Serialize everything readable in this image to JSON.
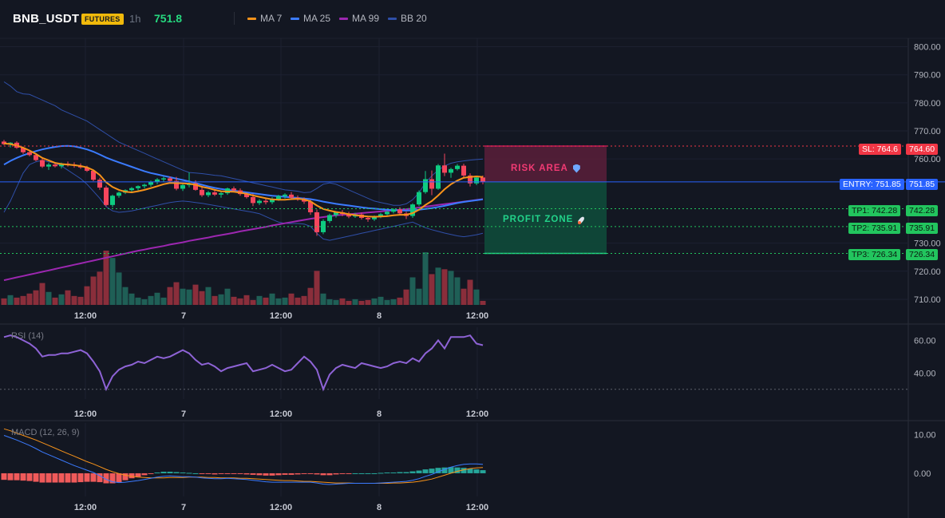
{
  "header": {
    "symbol": "BNB_USDT",
    "badge": "FUTURES",
    "interval": "1h",
    "price": "751.8",
    "legend": [
      {
        "label": "MA 7",
        "color": "#f7931a"
      },
      {
        "label": "MA 25",
        "color": "#3b7bff"
      },
      {
        "label": "MA 99",
        "color": "#9c27b0"
      },
      {
        "label": "BB 20",
        "color": "#2f4fa8"
      }
    ]
  },
  "colors": {
    "up": "#26a69a",
    "up_bright": "#0ecb81",
    "down": "#f6465d",
    "vol_up": "#1f5f56",
    "vol_down": "#8a2e3b",
    "risk": "#f23a74",
    "profit": "#22d38a",
    "rsi": "#8e63d6",
    "macd": "#3b7bff",
    "signal": "#f7931a",
    "hist_down": "#f05a5a",
    "hist_up": "#26a69a"
  },
  "panes": {
    "rsi_label": "RSI (14)",
    "macd_label": "MACD (12, 26, 9)"
  },
  "zones": {
    "risk_label": "RISK AREA",
    "profit_label": "PROFIT ZONE"
  },
  "levels": {
    "sl": {
      "tag": "SL: 764.6",
      "value": 764.6,
      "axis": "764.60"
    },
    "entry": {
      "tag": "ENTRY: 751.85",
      "value": 751.85,
      "axis": "751.85"
    },
    "tp1": {
      "tag": "TP1: 742.28",
      "value": 742.28,
      "axis": "742.28"
    },
    "tp2": {
      "tag": "TP2: 735.91",
      "value": 735.91,
      "axis": "735.91"
    },
    "tp3": {
      "tag": "TP3: 726.34",
      "value": 726.34,
      "axis": "726.34"
    }
  },
  "chart_data": {
    "type": "candlestick",
    "x_labels": [
      "12:00",
      "7",
      "12:00",
      "8",
      "12:00"
    ],
    "price_axis": {
      "ticks": [
        "800.00",
        "790.00",
        "780.00",
        "770.00",
        "760.00",
        "730.00",
        "720.00",
        "710.00"
      ],
      "range": [
        708,
        803
      ]
    },
    "rsi_axis": {
      "ticks": [
        "60.00",
        "40.00"
      ],
      "range": [
        24,
        68
      ]
    },
    "macd_axis": {
      "ticks": [
        "10.00",
        "0.00"
      ],
      "range": [
        -6,
        13
      ]
    },
    "candles": [
      [
        766.2,
        766.8,
        764.9,
        765.3
      ],
      [
        765.3,
        766.0,
        764.1,
        765.8
      ],
      [
        765.8,
        766.3,
        763.6,
        764.0
      ],
      [
        764.0,
        764.4,
        761.8,
        762.4
      ],
      [
        762.4,
        763.1,
        760.9,
        761.4
      ],
      [
        761.4,
        762.0,
        759.2,
        759.6
      ],
      [
        759.6,
        760.4,
        756.8,
        757.3
      ],
      [
        757.3,
        758.6,
        756.1,
        758.0
      ],
      [
        758.0,
        758.9,
        757.0,
        757.4
      ],
      [
        757.4,
        758.7,
        756.6,
        758.3
      ],
      [
        758.3,
        759.1,
        757.3,
        758.0
      ],
      [
        758.0,
        758.8,
        756.9,
        757.6
      ],
      [
        757.6,
        758.4,
        756.5,
        757.0
      ],
      [
        757.0,
        757.6,
        755.4,
        755.8
      ],
      [
        755.8,
        756.2,
        752.1,
        752.6
      ],
      [
        752.6,
        753.3,
        749.0,
        749.8
      ],
      [
        749.8,
        750.5,
        743.1,
        743.6
      ],
      [
        743.6,
        747.3,
        742.8,
        746.9
      ],
      [
        746.9,
        748.4,
        746.2,
        748.0
      ],
      [
        748.0,
        749.2,
        747.5,
        748.9
      ],
      [
        748.9,
        750.0,
        748.2,
        749.6
      ],
      [
        749.6,
        750.6,
        748.8,
        750.3
      ],
      [
        750.3,
        751.2,
        749.5,
        750.8
      ],
      [
        750.8,
        752.3,
        750.1,
        751.8
      ],
      [
        751.8,
        753.2,
        751.0,
        752.7
      ],
      [
        752.7,
        753.7,
        751.9,
        753.1
      ],
      [
        753.1,
        753.8,
        751.7,
        752.2
      ],
      [
        752.2,
        753.6,
        748.8,
        749.4
      ],
      [
        749.4,
        751.2,
        748.6,
        750.7
      ],
      [
        750.7,
        755.2,
        749.9,
        751.3
      ],
      [
        751.3,
        752.4,
        748.7,
        749.0
      ],
      [
        749.0,
        749.8,
        746.5,
        747.1
      ],
      [
        747.1,
        748.6,
        746.4,
        748.1
      ],
      [
        748.1,
        748.9,
        746.8,
        747.3
      ],
      [
        747.3,
        748.4,
        746.2,
        747.8
      ],
      [
        747.8,
        749.8,
        747.2,
        749.5
      ],
      [
        749.5,
        750.2,
        748.3,
        748.8
      ],
      [
        748.8,
        749.5,
        746.9,
        747.5
      ],
      [
        747.5,
        748.0,
        745.9,
        746.4
      ],
      [
        746.4,
        747.6,
        743.2,
        744.3
      ],
      [
        744.3,
        745.7,
        743.6,
        745.1
      ],
      [
        745.1,
        745.9,
        743.8,
        744.6
      ],
      [
        744.6,
        746.4,
        743.9,
        745.6
      ],
      [
        745.6,
        747.2,
        745.1,
        746.8
      ],
      [
        746.8,
        747.8,
        745.9,
        747.3
      ],
      [
        747.3,
        748.2,
        745.6,
        746.2
      ],
      [
        746.2,
        747.0,
        745.1,
        745.7
      ],
      [
        745.7,
        746.3,
        744.0,
        744.8
      ],
      [
        744.8,
        745.5,
        740.1,
        741.0
      ],
      [
        741.0,
        742.0,
        732.6,
        733.9
      ],
      [
        733.9,
        738.5,
        733.2,
        737.9
      ],
      [
        737.9,
        740.5,
        737.2,
        740.0
      ],
      [
        740.0,
        741.3,
        739.1,
        741.0
      ],
      [
        741.0,
        741.8,
        739.6,
        740.4
      ],
      [
        740.4,
        741.2,
        738.9,
        739.5
      ],
      [
        739.5,
        740.8,
        739.0,
        740.2
      ],
      [
        740.2,
        740.9,
        738.4,
        739.0
      ],
      [
        739.0,
        739.7,
        737.6,
        738.5
      ],
      [
        738.5,
        739.9,
        737.9,
        739.5
      ],
      [
        739.5,
        740.8,
        738.9,
        740.3
      ],
      [
        740.3,
        741.5,
        739.8,
        741.2
      ],
      [
        741.2,
        742.4,
        740.6,
        742.0
      ],
      [
        742.0,
        742.8,
        740.0,
        740.6
      ],
      [
        740.6,
        741.2,
        738.6,
        739.7
      ],
      [
        739.7,
        744.2,
        739.0,
        743.8
      ],
      [
        743.8,
        748.8,
        743.2,
        748.2
      ],
      [
        748.2,
        755.7,
        747.6,
        752.8
      ],
      [
        752.8,
        755.9,
        747.1,
        749.4
      ],
      [
        749.4,
        758.2,
        749.0,
        757.7
      ],
      [
        757.7,
        761.9,
        753.9,
        755.1
      ],
      [
        755.1,
        756.9,
        753.3,
        756.4
      ],
      [
        756.4,
        758.2,
        755.9,
        757.6
      ],
      [
        757.6,
        758.3,
        753.4,
        754.1
      ],
      [
        754.1,
        754.9,
        750.2,
        751.3
      ],
      [
        751.3,
        753.9,
        750.7,
        753.4
      ],
      [
        753.4,
        754.1,
        751.0,
        751.8
      ]
    ],
    "volumes": [
      8,
      12,
      9,
      11,
      14,
      18,
      27,
      16,
      9,
      13,
      18,
      11,
      10,
      23,
      35,
      41,
      67,
      58,
      40,
      22,
      14,
      9,
      7,
      11,
      15,
      9,
      22,
      28,
      20,
      19,
      25,
      17,
      22,
      11,
      13,
      20,
      10,
      8,
      12,
      6,
      11,
      9,
      14,
      8,
      9,
      14,
      9,
      11,
      21,
      42,
      14,
      7,
      6,
      8,
      5,
      7,
      5,
      6,
      8,
      10,
      6,
      7,
      9,
      19,
      34,
      20,
      65,
      38,
      46,
      44,
      42,
      34,
      20,
      31,
      19,
      5
    ],
    "rsi": [
      62,
      63,
      62,
      60,
      58,
      55,
      50,
      51,
      51,
      52,
      52,
      53,
      54,
      52,
      47,
      41,
      30,
      38,
      42,
      44,
      45,
      47,
      46,
      48,
      50,
      49,
      50,
      52,
      54,
      52,
      48,
      45,
      46,
      44,
      41,
      43,
      44,
      45,
      46,
      41,
      42,
      43,
      45,
      43,
      41,
      42,
      46,
      50,
      47,
      42,
      30,
      39,
      43,
      45,
      44,
      43,
      46,
      45,
      44,
      43,
      44,
      46,
      47,
      46,
      49,
      47,
      52,
      55,
      60,
      55,
      62,
      62,
      62,
      63,
      58,
      57
    ],
    "macd": [
      9.8,
      9.2,
      8.6,
      7.9,
      7.2,
      6.4,
      5.5,
      4.8,
      4.1,
      3.4,
      2.7,
      2.0,
      1.4,
      0.8,
      0.2,
      -0.6,
      -1.6,
      -2.2,
      -2.4,
      -2.3,
      -2.1,
      -1.9,
      -1.6,
      -1.3,
      -1.0,
      -0.8,
      -0.7,
      -0.8,
      -0.9,
      -0.9,
      -1.0,
      -1.2,
      -1.3,
      -1.4,
      -1.4,
      -1.3,
      -1.4,
      -1.5,
      -1.6,
      -1.8,
      -2.0,
      -2.2,
      -2.3,
      -2.3,
      -2.3,
      -2.3,
      -2.3,
      -2.3,
      -2.3,
      -2.5,
      -2.8,
      -2.9,
      -2.8,
      -2.7,
      -2.6,
      -2.6,
      -2.6,
      -2.6,
      -2.6,
      -2.5,
      -2.4,
      -2.3,
      -2.2,
      -2.1,
      -1.8,
      -1.4,
      -0.8,
      -0.3,
      0.4,
      1.0,
      1.6,
      2.0,
      2.3,
      2.4,
      2.4,
      2.3
    ],
    "signal": [
      11.5,
      11.0,
      10.4,
      9.8,
      9.2,
      8.6,
      7.9,
      7.2,
      6.5,
      5.8,
      5.1,
      4.4,
      3.7,
      3.0,
      2.4,
      1.7,
      1.0,
      0.4,
      -0.1,
      -0.5,
      -0.8,
      -1.0,
      -1.1,
      -1.2,
      -1.2,
      -1.2,
      -1.1,
      -1.1,
      -1.1,
      -1.0,
      -1.0,
      -1.0,
      -1.1,
      -1.1,
      -1.2,
      -1.2,
      -1.2,
      -1.3,
      -1.3,
      -1.4,
      -1.5,
      -1.6,
      -1.7,
      -1.8,
      -1.9,
      -1.9,
      -2.0,
      -2.1,
      -2.1,
      -2.2,
      -2.3,
      -2.4,
      -2.5,
      -2.5,
      -2.5,
      -2.6,
      -2.6,
      -2.6,
      -2.6,
      -2.6,
      -2.6,
      -2.5,
      -2.5,
      -2.4,
      -2.3,
      -2.1,
      -1.8,
      -1.5,
      -1.0,
      -0.5,
      0.0,
      0.5,
      0.9,
      1.2,
      1.4,
      1.5
    ],
    "hist": [
      -1.7,
      -1.8,
      -1.8,
      -1.9,
      -2.0,
      -2.2,
      -2.4,
      -2.4,
      -2.4,
      -2.4,
      -2.4,
      -2.4,
      -2.3,
      -2.2,
      -2.2,
      -2.3,
      -2.6,
      -2.6,
      -2.3,
      -1.8,
      -1.3,
      -0.9,
      -0.5,
      -0.1,
      0.2,
      0.4,
      0.4,
      0.3,
      0.2,
      0.1,
      0.0,
      -0.2,
      -0.2,
      -0.3,
      -0.2,
      -0.1,
      -0.2,
      -0.2,
      -0.3,
      -0.4,
      -0.5,
      -0.6,
      -0.6,
      -0.5,
      -0.4,
      -0.4,
      -0.3,
      -0.2,
      -0.2,
      -0.3,
      -0.5,
      -0.5,
      -0.3,
      -0.2,
      -0.1,
      0.0,
      0.0,
      0.0,
      0.0,
      0.1,
      0.2,
      0.2,
      0.3,
      0.3,
      0.5,
      0.7,
      1.0,
      1.2,
      1.4,
      1.5,
      1.6,
      1.5,
      1.4,
      1.2,
      1.0,
      0.8
    ],
    "ma7": [
      765.5,
      765.3,
      764.8,
      764.0,
      763.0,
      761.8,
      760.4,
      759.5,
      758.6,
      758.2,
      758.0,
      757.8,
      757.5,
      757.0,
      756.0,
      754.3,
      751.7,
      750.0,
      749.0,
      748.3,
      748.1,
      748.5,
      749.0,
      749.6,
      750.3,
      751.0,
      751.5,
      751.4,
      751.3,
      751.2,
      750.8,
      750.1,
      749.6,
      749.0,
      748.5,
      748.4,
      748.3,
      748.0,
      747.6,
      747.0,
      746.5,
      746.0,
      745.6,
      745.5,
      745.5,
      745.7,
      745.8,
      745.6,
      744.9,
      743.4,
      742.2,
      741.6,
      741.1,
      740.8,
      740.3,
      740.0,
      739.7,
      739.5,
      739.4,
      739.5,
      739.6,
      739.9,
      740.1,
      740.1,
      740.7,
      741.9,
      743.6,
      745.0,
      747.0,
      749.2,
      751.0,
      752.3,
      753.3,
      753.6,
      753.8,
      753.6
    ],
    "ma25": [
      758.0,
      759.3,
      760.4,
      761.3,
      762.1,
      762.8,
      763.4,
      763.9,
      764.3,
      764.6,
      764.7,
      764.5,
      764.0,
      763.4,
      762.6,
      761.6,
      760.5,
      759.6,
      758.8,
      758.0,
      757.2,
      756.4,
      755.6,
      755.0,
      754.5,
      754.0,
      753.5,
      753.0,
      752.5,
      752.0,
      751.4,
      750.8,
      750.2,
      749.7,
      749.3,
      749.0,
      748.7,
      748.4,
      748.1,
      747.8,
      747.5,
      747.2,
      746.9,
      746.7,
      746.5,
      746.3,
      746.1,
      745.9,
      745.7,
      745.3,
      744.8,
      744.4,
      744.0,
      743.7,
      743.4,
      743.1,
      742.8,
      742.5,
      742.3,
      742.1,
      741.9,
      741.8,
      741.7,
      741.6,
      741.7,
      741.9,
      742.2,
      742.5,
      742.9,
      743.3,
      743.8,
      744.3,
      744.7,
      745.0,
      745.3,
      745.6
    ],
    "ma99": [
      716.8,
      717.3,
      717.8,
      718.3,
      718.8,
      719.3,
      719.8,
      720.3,
      720.8,
      721.3,
      721.8,
      722.3,
      722.8,
      723.3,
      723.8,
      724.3,
      724.8,
      725.3,
      725.8,
      726.3,
      726.8,
      727.3,
      727.7,
      728.2,
      728.6,
      729.0,
      729.5,
      729.9,
      730.3,
      730.8,
      731.2,
      731.6,
      732.0,
      732.5,
      732.9,
      733.3,
      733.7,
      734.2,
      734.6,
      735.0,
      735.4,
      735.8,
      736.3,
      736.7,
      737.1,
      737.5,
      737.9,
      738.3,
      738.7,
      739.0,
      739.3,
      739.6,
      739.9,
      740.1,
      740.3,
      740.5,
      740.7,
      740.9,
      741.1,
      741.3,
      741.5,
      741.7,
      741.9,
      742.1,
      742.4,
      742.7,
      743.0,
      743.3,
      743.6,
      743.9,
      744.2,
      744.5,
      744.8,
      745.1,
      745.4,
      745.7
    ],
    "bb_upper": [
      787.5,
      786.0,
      784.0,
      783.2,
      783.0,
      782.0,
      781.0,
      780.0,
      779.0,
      777.5,
      776.5,
      775.5,
      774.5,
      773.5,
      772.0,
      770.5,
      769.0,
      767.5,
      766.0,
      765.0,
      764.0,
      763.0,
      762.0,
      761.0,
      760.0,
      759.0,
      758.0,
      757.0,
      756.0,
      755.2,
      755.0,
      754.8,
      754.5,
      754.2,
      754.0,
      753.5,
      753.0,
      752.5,
      752.0,
      751.5,
      751.0,
      750.5,
      750.0,
      749.5,
      749.0,
      748.8,
      748.5,
      748.0,
      748.2,
      749.5,
      751.0,
      751.5,
      751.0,
      750.0,
      749.0,
      748.0,
      747.0,
      746.0,
      745.0,
      744.5,
      744.0,
      743.5,
      743.5,
      744.0,
      745.5,
      748.0,
      751.5,
      754.0,
      756.0,
      757.5,
      758.5,
      759.0,
      759.3,
      759.6,
      759.8,
      760.0
    ],
    "bb_lower": [
      741.0,
      745.0,
      750.0,
      755.0,
      758.0,
      759.0,
      759.5,
      759.0,
      758.5,
      757.5,
      756.0,
      754.5,
      753.0,
      751.0,
      748.5,
      746.0,
      743.0,
      741.5,
      741.0,
      741.2,
      741.5,
      742.0,
      742.5,
      743.0,
      743.5,
      744.0,
      744.5,
      744.8,
      745.0,
      744.8,
      744.5,
      744.2,
      743.8,
      743.4,
      743.0,
      742.6,
      742.2,
      741.8,
      741.4,
      741.0,
      740.5,
      739.5,
      738.5,
      737.5,
      737.0,
      737.0,
      737.0,
      736.8,
      736.0,
      733.5,
      731.5,
      731.0,
      731.5,
      732.0,
      732.5,
      733.0,
      733.5,
      734.0,
      734.5,
      735.0,
      735.5,
      736.0,
      736.5,
      737.0,
      737.5,
      736.5,
      735.5,
      734.8,
      734.2,
      733.6,
      733.1,
      732.6,
      732.3,
      732.6,
      733.0,
      733.5
    ]
  }
}
